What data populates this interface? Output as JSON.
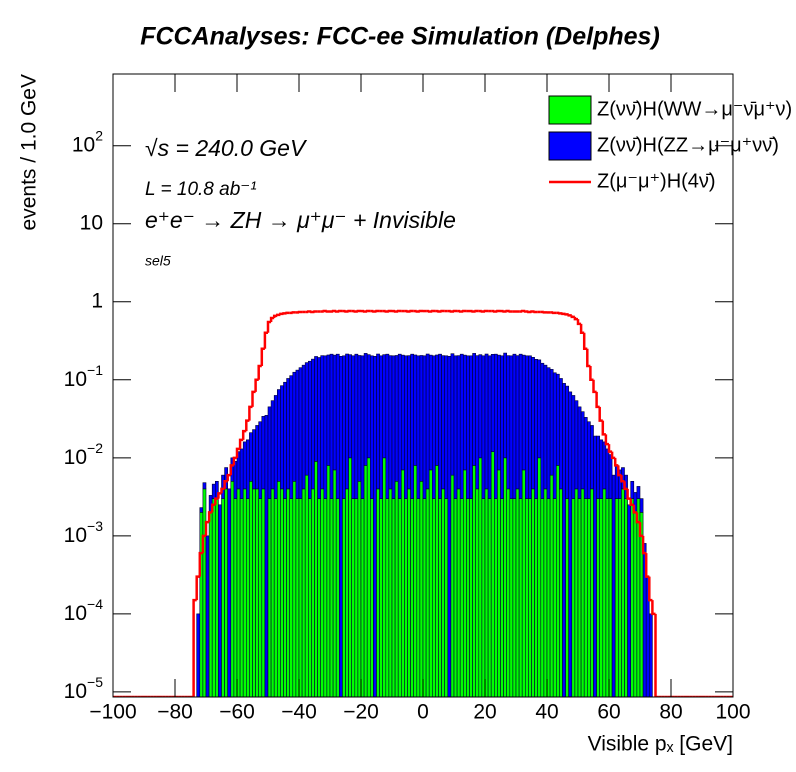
{
  "chart_data": {
    "type": "stacked_histogram",
    "title": "FCCAnalyses: FCC-ee Simulation (Delphes)",
    "x_label": "Visible pₓ [GeV]",
    "y_label": "events / 1.0 GeV",
    "annotations": [
      "√s = 240.0 GeV",
      "L = 10.8 ab⁻¹",
      "e⁺e⁻ → ZH → μ⁺μ⁻ + Invisible",
      "sel5"
    ],
    "log_y": true,
    "legend": "top-right",
    "xlim": [
      -100,
      100
    ],
    "xticks": [
      -100,
      -80,
      -60,
      -40,
      -20,
      0,
      20,
      40,
      60,
      80,
      100
    ],
    "ylim": [
      8.6e-06,
      830
    ],
    "yticks": [
      {
        "value": 1e-05,
        "label": "10^-5"
      },
      {
        "value": 0.0001,
        "label": "10^-4"
      },
      {
        "value": 0.001,
        "label": "10^-3"
      },
      {
        "value": 0.01,
        "label": "10^-2"
      },
      {
        "value": 0.1,
        "label": "10^-1"
      },
      1,
      10,
      {
        "value": 100,
        "label": "10^2"
      }
    ],
    "bins": [
      -100,
      -99,
      -98,
      -97,
      -96,
      -95,
      -94,
      -93,
      -92,
      -91,
      -90,
      -89,
      -88,
      -87,
      -86,
      -85,
      -84,
      -83,
      -82,
      -81,
      -80,
      -79,
      -78,
      -77,
      -76,
      -75,
      -74,
      -73,
      -72,
      -71,
      -70,
      -69,
      -68,
      -67,
      -66,
      -65,
      -64,
      -63,
      -62,
      -61,
      -60,
      -59,
      -58,
      -57,
      -56,
      -55,
      -54,
      -53,
      -52,
      -51,
      -50,
      -49,
      -48,
      -47,
      -46,
      -45,
      -44,
      -43,
      -42,
      -41,
      -40,
      -39,
      -38,
      -37,
      -36,
      -35,
      -34,
      -33,
      -32,
      -31,
      -30,
      -29,
      -28,
      -27,
      -26,
      -25,
      -24,
      -23,
      -22,
      -21,
      -20,
      -19,
      -18,
      -17,
      -16,
      -15,
      -14,
      -13,
      -12,
      -11,
      -10,
      -9,
      -8,
      -7,
      -6,
      -5,
      -4,
      -3,
      -2,
      -1,
      0,
      1,
      2,
      3,
      4,
      5,
      6,
      7,
      8,
      9,
      10,
      11,
      12,
      13,
      14,
      15,
      16,
      17,
      18,
      19,
      20,
      21,
      22,
      23,
      24,
      25,
      26,
      27,
      28,
      29,
      30,
      31,
      32,
      33,
      34,
      35,
      36,
      37,
      38,
      39,
      40,
      41,
      42,
      43,
      44,
      45,
      46,
      47,
      48,
      49,
      50,
      51,
      52,
      53,
      54,
      55,
      56,
      57,
      58,
      59,
      60,
      61,
      62,
      63,
      64,
      65,
      66,
      67,
      68,
      69,
      70,
      71,
      72,
      73,
      74,
      75,
      76,
      77,
      78,
      79,
      80,
      81,
      82,
      83,
      84,
      85,
      86,
      87,
      88,
      89,
      90,
      91,
      92,
      93,
      94,
      95,
      96,
      97,
      98,
      99,
      100
    ],
    "series": [
      {
        "name": "Z(νν̄)H(WW→μ⁻ν̄μ⁺ν)",
        "color": "#00ff00",
        "stack": true,
        "values": [
          0,
          0,
          0,
          0,
          0,
          0,
          0,
          0,
          0,
          0,
          0,
          0,
          0,
          0,
          0,
          0,
          0,
          0,
          0,
          0,
          0,
          0,
          0,
          0,
          0,
          0,
          0,
          0,
          0.002,
          0.004,
          0,
          0.002,
          0.003,
          0.003,
          0,
          0.003,
          0.004,
          0,
          0.005,
          0.003,
          0.004,
          0.003,
          0.004,
          0.003,
          0.005,
          0.004,
          0.004,
          0.003,
          0.004,
          0,
          0.003,
          0.004,
          0.003,
          0.005,
          0.004,
          0.003,
          0.004,
          0.003,
          0.005,
          0.003,
          0.003,
          0.004,
          0.006,
          0.003,
          0.004,
          0.009,
          0.003,
          0.004,
          0.003,
          0.008,
          0.003,
          0.007,
          0.003,
          0,
          0.003,
          0.004,
          0.01,
          0.003,
          0.003,
          0.005,
          0.003,
          0.008,
          0.01,
          0.003,
          0,
          0.004,
          0.003,
          0.01,
          0.003,
          0.004,
          0.003,
          0.005,
          0.003,
          0.007,
          0.003,
          0.004,
          0.003,
          0.008,
          0.003,
          0.005,
          0.003,
          0.004,
          0.007,
          0.003,
          0.008,
          0.003,
          0.004,
          0.003,
          0,
          0.006,
          0.003,
          0.004,
          0.003,
          0.007,
          0.003,
          0.003,
          0.008,
          0.004,
          0.01,
          0.003,
          0.004,
          0.003,
          0.012,
          0.003,
          0.007,
          0.003,
          0.01,
          0.004,
          0.003,
          0.003,
          0.004,
          0.003,
          0.007,
          0.003,
          0.003,
          0.004,
          0.003,
          0.01,
          0.003,
          0.004,
          0.003,
          0.006,
          0.003,
          0.008,
          0.004,
          0,
          0.003,
          0,
          0.003,
          0.004,
          0.003,
          0.004,
          0.003,
          0.003,
          0.004,
          0,
          0.003,
          0.003,
          0.004,
          0.003,
          0.003,
          0,
          0.003,
          0.003,
          0.004,
          0.003,
          0,
          0.003,
          0.002,
          0.003,
          0.002,
          0,
          0,
          0,
          0,
          0,
          0,
          0,
          0,
          0,
          0,
          0,
          0,
          0,
          0,
          0,
          0,
          0,
          0,
          0,
          0,
          0,
          0,
          0,
          0,
          0,
          0,
          0,
          0,
          0
        ]
      },
      {
        "name": "Z(νν̄)H(ZZ→μ⁻μ⁺νν̄)",
        "color": "#0000ff",
        "stack": true,
        "values": [
          0,
          0,
          0,
          0,
          0,
          0,
          0,
          0,
          0,
          0,
          0,
          0,
          0,
          0,
          0,
          0,
          0,
          0,
          0,
          0,
          0,
          0,
          0,
          0,
          0,
          0,
          0,
          0.0001,
          0.0003,
          0.0008,
          0.001,
          0.0013,
          0.0016,
          0.002,
          0.0025,
          0.003,
          0.0035,
          0.004,
          0.005,
          0.006,
          0.008,
          0.01,
          0.012,
          0.014,
          0.016,
          0.019,
          0.022,
          0.026,
          0.03,
          0.035,
          0.042,
          0.05,
          0.06,
          0.07,
          0.08,
          0.09,
          0.1,
          0.11,
          0.12,
          0.13,
          0.14,
          0.15,
          0.16,
          0.17,
          0.18,
          0.19,
          0.19,
          0.2,
          0.2,
          0.2,
          0.21,
          0.2,
          0.21,
          0.2,
          0.2,
          0.21,
          0.2,
          0.2,
          0.21,
          0.2,
          0.2,
          0.21,
          0.2,
          0.2,
          0.2,
          0.21,
          0.2,
          0.2,
          0.21,
          0.2,
          0.2,
          0.2,
          0.21,
          0.2,
          0.2,
          0.2,
          0.21,
          0.2,
          0.2,
          0.2,
          0.2,
          0.21,
          0.2,
          0.2,
          0.2,
          0.21,
          0.2,
          0.2,
          0.2,
          0.21,
          0.2,
          0.2,
          0.21,
          0.2,
          0.2,
          0.2,
          0.21,
          0.2,
          0.2,
          0.2,
          0.21,
          0.2,
          0.2,
          0.21,
          0.2,
          0.2,
          0.21,
          0.2,
          0.2,
          0.21,
          0.2,
          0.21,
          0.2,
          0.2,
          0.2,
          0.19,
          0.18,
          0.17,
          0.16,
          0.15,
          0.14,
          0.13,
          0.12,
          0.11,
          0.1,
          0.09,
          0.08,
          0.07,
          0.06,
          0.05,
          0.042,
          0.035,
          0.03,
          0.026,
          0.022,
          0.019,
          0.016,
          0.014,
          0.012,
          0.01,
          0.008,
          0.006,
          0.005,
          0.004,
          0.0035,
          0.003,
          0.0025,
          0.002,
          0.0016,
          0.0013,
          0.001,
          0.0008,
          0.0003,
          0.0001,
          0,
          0,
          0,
          0,
          0,
          0,
          0,
          0,
          0,
          0,
          0,
          0,
          0,
          0,
          0,
          0,
          0,
          0,
          0,
          0,
          0,
          0,
          0,
          0,
          0,
          0
        ]
      },
      {
        "name": "Z(μ⁻μ⁺)H(4ν̄)",
        "color": "#ff0000",
        "stack": false,
        "values": [
          0,
          0,
          0,
          0,
          0,
          0,
          0,
          0,
          0,
          0,
          0,
          0,
          0,
          0,
          0,
          0,
          0,
          0,
          0,
          0,
          0,
          0,
          0,
          0,
          0,
          0,
          0.00015,
          0.0003,
          0.0006,
          0.001,
          0.0015,
          0.002,
          0.0025,
          0.003,
          0.0035,
          0.004,
          0.005,
          0.006,
          0.008,
          0.01,
          0.013,
          0.017,
          0.022,
          0.03,
          0.045,
          0.07,
          0.1,
          0.15,
          0.25,
          0.4,
          0.55,
          0.62,
          0.66,
          0.68,
          0.7,
          0.71,
          0.72,
          0.72,
          0.73,
          0.73,
          0.74,
          0.74,
          0.74,
          0.75,
          0.74,
          0.75,
          0.75,
          0.75,
          0.76,
          0.75,
          0.75,
          0.76,
          0.75,
          0.76,
          0.76,
          0.75,
          0.76,
          0.76,
          0.75,
          0.76,
          0.76,
          0.75,
          0.76,
          0.76,
          0.75,
          0.76,
          0.76,
          0.76,
          0.75,
          0.76,
          0.76,
          0.75,
          0.76,
          0.76,
          0.76,
          0.75,
          0.76,
          0.76,
          0.75,
          0.76,
          0.76,
          0.76,
          0.75,
          0.76,
          0.76,
          0.75,
          0.76,
          0.76,
          0.76,
          0.75,
          0.76,
          0.76,
          0.75,
          0.76,
          0.76,
          0.76,
          0.75,
          0.76,
          0.76,
          0.75,
          0.76,
          0.76,
          0.76,
          0.75,
          0.76,
          0.76,
          0.75,
          0.76,
          0.75,
          0.75,
          0.75,
          0.75,
          0.76,
          0.75,
          0.74,
          0.75,
          0.74,
          0.74,
          0.74,
          0.73,
          0.73,
          0.73,
          0.72,
          0.72,
          0.71,
          0.7,
          0.69,
          0.67,
          0.64,
          0.6,
          0.52,
          0.4,
          0.25,
          0.15,
          0.1,
          0.07,
          0.045,
          0.03,
          0.02,
          0.015,
          0.012,
          0.01,
          0.008,
          0.006,
          0.005,
          0.004,
          0.003,
          0.0025,
          0.002,
          0.0015,
          0.001,
          0.0006,
          0.0003,
          0.00015,
          0.0001,
          0,
          0,
          0,
          0,
          0,
          0,
          0,
          0,
          0,
          0,
          0,
          0,
          0,
          0,
          0,
          0,
          0,
          0,
          0,
          0,
          0,
          0,
          0,
          0,
          0
        ]
      }
    ]
  }
}
